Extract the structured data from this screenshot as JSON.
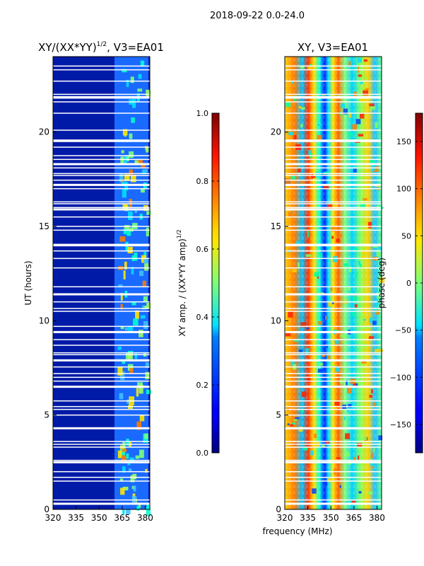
{
  "figure": {
    "suptitle": "2018-09-22 0.0-24.0",
    "xlabel": "frequency (MHz)"
  },
  "chart_data": [
    {
      "type": "heatmap",
      "title_text": "XY/(XX*YY)",
      "title_sup": "1/2",
      "title_suffix": ", V3=EA01",
      "xlabel": "",
      "ylabel": "UT (hours)",
      "xlim": [
        320,
        383
      ],
      "ylim": [
        0,
        24
      ],
      "xticks": [
        320,
        335,
        350,
        365,
        380
      ],
      "yticks": [
        0,
        5,
        10,
        15,
        20
      ],
      "colormap": "jet",
      "colorbar": {
        "label_text": "XY amp. / (XX*YY amp)",
        "label_sup": "1/2",
        "range": [
          0.0,
          1.0
        ],
        "ticks": [
          "0.0",
          "0.2",
          "0.4",
          "0.6",
          "0.8",
          "1.0"
        ],
        "tick_values": [
          0.0,
          0.2,
          0.4,
          0.6,
          0.8,
          1.0
        ]
      },
      "description_values": {
        "low_band_320_360_MHz": 0.1,
        "high_band_362_380_MHz": [
          0.3,
          0.9
        ]
      }
    },
    {
      "type": "heatmap",
      "title_text": "XY, V3=EA01",
      "xlabel": "frequency (MHz)",
      "ylabel": "",
      "xlim": [
        320,
        383
      ],
      "ylim": [
        0,
        24
      ],
      "xticks": [
        320,
        335,
        350,
        365,
        380
      ],
      "yticks": [
        0,
        5,
        10,
        15,
        20
      ],
      "colormap": "jet",
      "colorbar": {
        "label_text": "phase (deg)",
        "range": [
          -180,
          180
        ],
        "ticks": [
          "−150",
          "−100",
          "−50",
          "0",
          "50",
          "100",
          "150"
        ],
        "tick_values": [
          -150,
          -100,
          -50,
          0,
          50,
          100,
          150
        ]
      }
    }
  ],
  "flagged_ut_hours": [
    0.3,
    0.5,
    1.5,
    1.7,
    2.0,
    2.5,
    2.6,
    3.3,
    3.45,
    3.6,
    4.3,
    5.0,
    5.3,
    5.45,
    5.75,
    6.5,
    6.8,
    7.0,
    7.2,
    7.55,
    7.9,
    8.2,
    8.3,
    8.7,
    9.0,
    9.4,
    9.7,
    10.5,
    10.65,
    11.0,
    11.4,
    11.8,
    12.8,
    13.3,
    13.7,
    14.0,
    14.05,
    14.8,
    15.0,
    15.5,
    15.9,
    16.0,
    16.2,
    16.3,
    17.0,
    17.2,
    17.45,
    17.7,
    17.8,
    18.1,
    18.3,
    18.55,
    18.75,
    19.2,
    19.5,
    19.55,
    20.1,
    21.0,
    21.6,
    21.8,
    21.85,
    22.0,
    22.7,
    23.3,
    23.5
  ]
}
